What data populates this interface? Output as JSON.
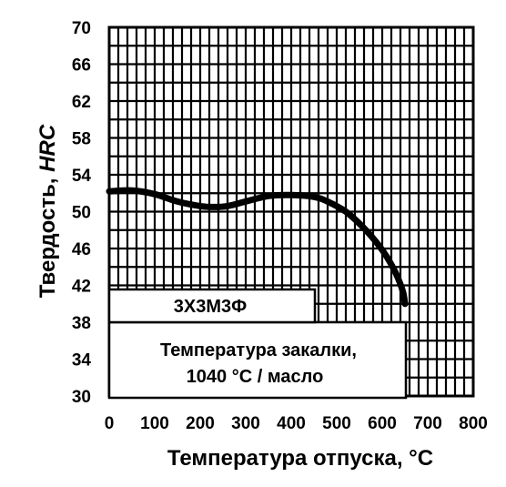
{
  "chart_data": {
    "type": "line",
    "title": "",
    "xlabel": "Температура отпуска, °C",
    "ylabel_main": "Твердость, ",
    "ylabel_unit": "HRC",
    "xlim": [
      0,
      800
    ],
    "ylim": [
      30,
      70
    ],
    "x_ticks": [
      "0",
      "100",
      "200",
      "300",
      "400",
      "500",
      "600",
      "700",
      "800"
    ],
    "y_ticks": [
      "30",
      "34",
      "38",
      "42",
      "46",
      "50",
      "54",
      "58",
      "62",
      "66",
      "70"
    ],
    "grid": true,
    "series": [
      {
        "name": "3Х3М3Ф",
        "x": [
          0,
          50,
          100,
          150,
          200,
          230,
          260,
          300,
          350,
          400,
          450,
          480,
          520,
          560,
          590,
          610,
          630,
          645,
          650
        ],
        "y": [
          52.2,
          52.3,
          51.9,
          51.1,
          50.6,
          50.5,
          50.6,
          51.1,
          51.7,
          51.8,
          51.6,
          51.1,
          50.0,
          48.2,
          46.5,
          45.1,
          43.3,
          41.4,
          40.0
        ]
      }
    ],
    "annotations": {
      "steel_grade": "3Х3М3Ф",
      "quench_line1": "Температура закалки,",
      "quench_line2": "1040 °C / масло"
    }
  }
}
